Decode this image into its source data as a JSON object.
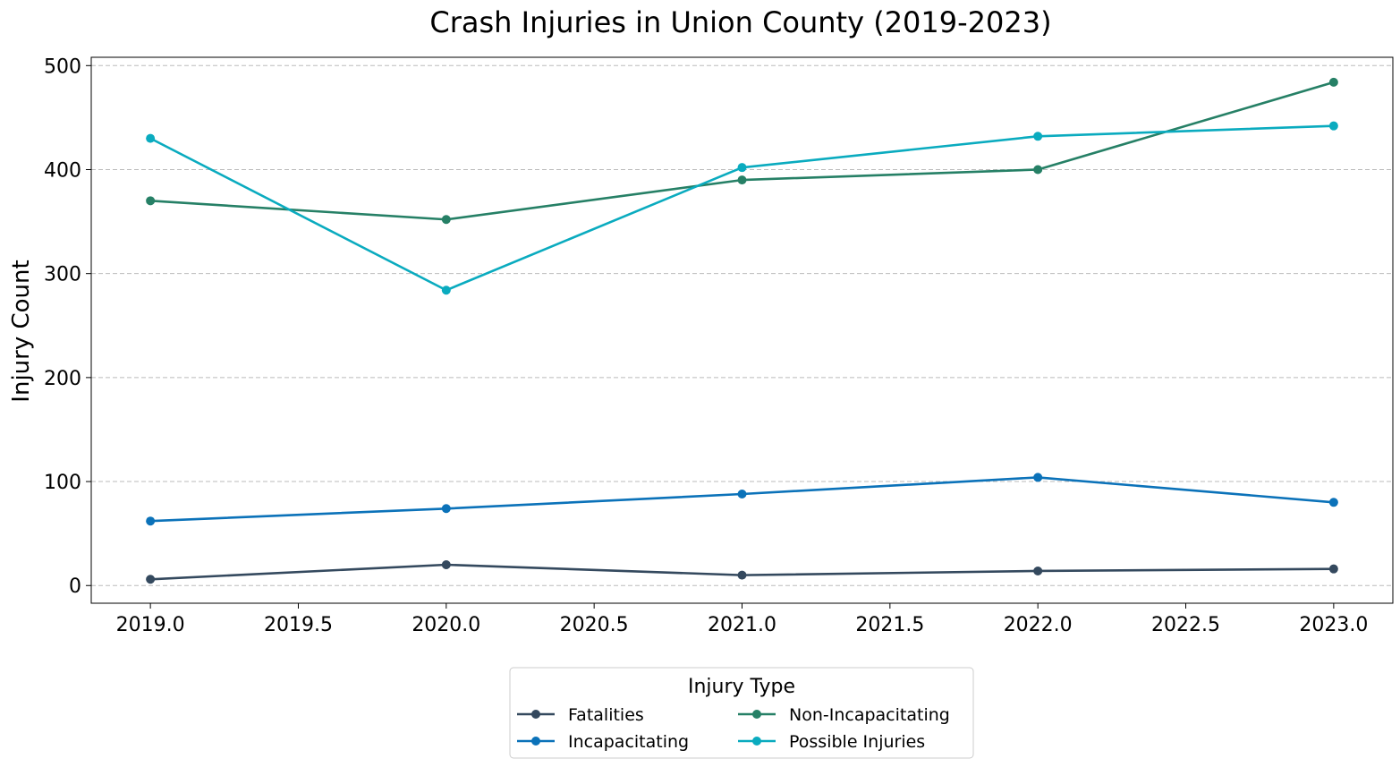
{
  "chart_data": {
    "type": "line",
    "title": "Crash Injuries in Union County (2019-2023)",
    "xlabel": "",
    "ylabel": "Injury Count",
    "x": [
      2019,
      2020,
      2021,
      2022,
      2023
    ],
    "xlim": [
      2018.8,
      2023.2
    ],
    "ylim": [
      -17,
      508
    ],
    "xticks": [
      "2019.0",
      "2019.5",
      "2020.0",
      "2020.5",
      "2021.0",
      "2021.5",
      "2022.0",
      "2022.5",
      "2023.0"
    ],
    "xtick_values": [
      2019.0,
      2019.5,
      2020.0,
      2020.5,
      2021.0,
      2021.5,
      2022.0,
      2022.5,
      2023.0
    ],
    "yticks": [
      "0",
      "100",
      "200",
      "300",
      "400",
      "500"
    ],
    "ytick_values": [
      0,
      100,
      200,
      300,
      400,
      500
    ],
    "grid": "horizontal dashed",
    "legend": {
      "title": "Injury Type",
      "placement": "bottom-center"
    },
    "series": [
      {
        "name": "Fatalities",
        "color": "#34495e",
        "values": [
          6,
          20,
          10,
          14,
          16
        ]
      },
      {
        "name": "Incapacitating",
        "color": "#0b72b9",
        "values": [
          62,
          74,
          88,
          104,
          80
        ]
      },
      {
        "name": "Non-Incapacitating",
        "color": "#268066",
        "values": [
          370,
          352,
          390,
          400,
          484
        ]
      },
      {
        "name": "Possible Injuries",
        "color": "#0aabbf",
        "values": [
          430,
          284,
          402,
          432,
          442
        ]
      }
    ]
  }
}
